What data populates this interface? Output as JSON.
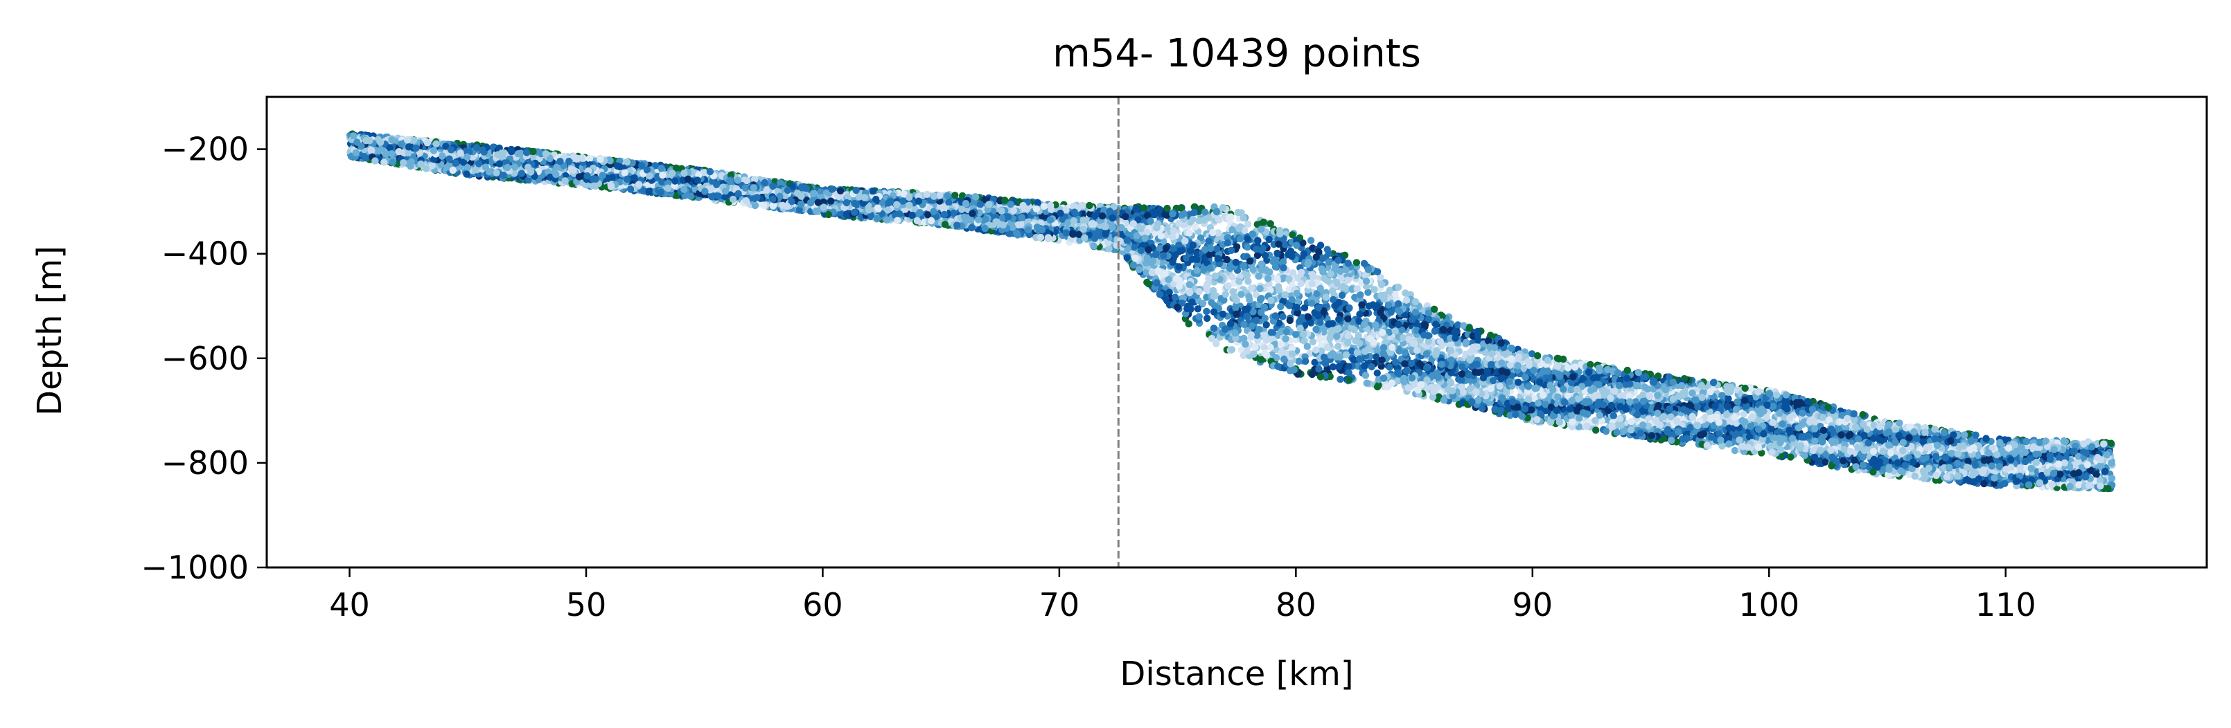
{
  "chart_data": {
    "type": "scatter",
    "title": "m54- 10439 points",
    "xlabel": "Distance [km]",
    "ylabel": "Depth [m]",
    "xlim": [
      36.5,
      118.5
    ],
    "ylim": [
      -1000,
      -100
    ],
    "xticks": [
      40,
      50,
      60,
      70,
      80,
      90,
      100,
      110
    ],
    "xtick_labels": [
      "40",
      "50",
      "60",
      "70",
      "80",
      "90",
      "100",
      "110"
    ],
    "yticks": [
      -200,
      -400,
      -600,
      -800,
      -1000
    ],
    "ytick_labels": [
      "−200",
      "−400",
      "−600",
      "−800",
      "−1000"
    ],
    "grid": false,
    "vline": {
      "x": 72.5,
      "color": "#808080",
      "style": "dashed"
    },
    "n_points": 10439,
    "colors": [
      "#08306b",
      "#08519c",
      "#2171b5",
      "#4292c6",
      "#6baed6",
      "#9ecae1",
      "#c6dbef",
      "#deebf7",
      "#0b6b2e"
    ],
    "band": {
      "x": [
        40,
        45,
        50,
        55,
        60,
        65,
        70,
        72.5,
        75,
        77,
        80,
        83,
        86,
        90,
        95,
        100,
        105,
        110,
        114.5
      ],
      "top": [
        -170,
        -190,
        -215,
        -240,
        -275,
        -285,
        -305,
        -310,
        -310,
        -310,
        -360,
        -420,
        -510,
        -590,
        -630,
        -660,
        -720,
        -755,
        -760
      ],
      "bottom": [
        -215,
        -250,
        -270,
        -295,
        -325,
        -345,
        -375,
        -395,
        -520,
        -585,
        -630,
        -650,
        -680,
        -720,
        -755,
        -785,
        -825,
        -845,
        -850
      ]
    }
  }
}
